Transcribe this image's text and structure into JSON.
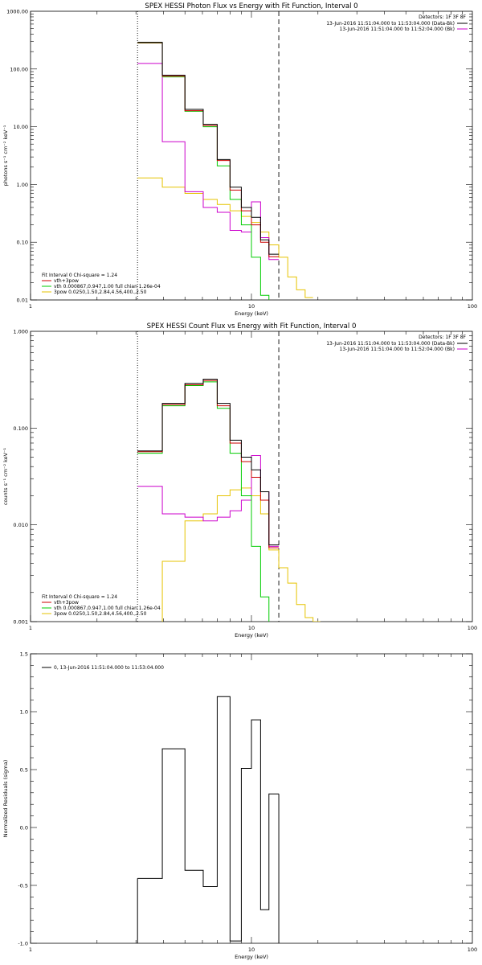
{
  "chart_data": [
    {
      "type": "line",
      "title": "SPEX HESSI Photon Flux vs Energy with Fit Function, Interval 0",
      "xlabel": "Energy (keV)",
      "ylabel": "photons s⁻¹ cm⁻² keV⁻¹",
      "xscale": "log",
      "yscale": "log",
      "xlim": [
        1,
        100
      ],
      "ylim": [
        0.01,
        1000
      ],
      "xticks": [
        {
          "v": 1,
          "label": "1"
        },
        {
          "v": 10,
          "label": "10"
        },
        {
          "v": 100,
          "label": "100"
        }
      ],
      "yticks": [
        {
          "v": 0.01,
          "label": "0.01"
        },
        {
          "v": 0.1,
          "label": "0.10"
        },
        {
          "v": 1,
          "label": "1.00"
        },
        {
          "v": 10,
          "label": "10.00"
        },
        {
          "v": 100,
          "label": "100.00"
        },
        {
          "v": 1000,
          "label": "1000.00"
        }
      ],
      "vlines": [
        {
          "x": 3.05,
          "style": "dotted"
        },
        {
          "x": 13.3,
          "style": "dashed"
        }
      ],
      "legend_right": {
        "header": "Detectors: 1F 3F 8F",
        "entries": [
          {
            "text": "13-Jun-2016 11:51:04.000 to 11:53:04.000 (Data-Bk)",
            "color": "#000000"
          },
          {
            "text": "13-Jun-2016 11:51:04.000 to 11:52:04.000 (Bk)",
            "color": "#cc00cc"
          }
        ]
      },
      "legend_left": {
        "header": "Fit Interval 0   Chi-square = 1.24",
        "entries": [
          {
            "text": "vth+3pow",
            "color": "#cc0000"
          },
          {
            "text": "vth 0.000867,0.947,1.00   full chian 1.26e-04",
            "color": "#00cc00"
          },
          {
            "text": "3pow 0.0250,1.50,2.84,4.56,400.,2.50",
            "color": "#e6c300"
          }
        ]
      },
      "edges": [
        3.05,
        3.95,
        5.0,
        6.05,
        7.0,
        8.0,
        9.0,
        10.0,
        11.0,
        12.0,
        13.3,
        14.6,
        16.0,
        17.5,
        19.0
      ],
      "series": [
        {
          "name": "data",
          "color": "#000000",
          "values": [
            290,
            78,
            20,
            11,
            2.7,
            0.9,
            0.4,
            0.27,
            0.11,
            0.062,
            null,
            null,
            null,
            null
          ]
        },
        {
          "name": "vth+3pow",
          "color": "#cc0000",
          "values": [
            285,
            75,
            19,
            10.5,
            2.6,
            0.8,
            0.35,
            0.2,
            0.1,
            0.056,
            null,
            null,
            null,
            null
          ]
        },
        {
          "name": "vth",
          "color": "#00cc00",
          "values": [
            282,
            73,
            18.5,
            10,
            2.1,
            0.55,
            0.2,
            0.055,
            0.012,
            0.004,
            null,
            null,
            null,
            null
          ]
        },
        {
          "name": "3pow",
          "color": "#e6c300",
          "values": [
            1.3,
            0.9,
            0.7,
            0.55,
            0.45,
            0.35,
            0.28,
            0.22,
            0.15,
            0.09,
            0.055,
            0.025,
            0.015,
            0.011
          ]
        },
        {
          "name": "background",
          "color": "#cc00cc",
          "values": [
            125,
            5.5,
            0.75,
            0.4,
            0.33,
            0.16,
            0.15,
            0.5,
            0.12,
            0.05,
            null,
            null,
            null,
            null
          ]
        }
      ]
    },
    {
      "type": "line",
      "title": "SPEX HESSI Count Flux vs Energy with Fit Function, Interval 0",
      "xlabel": "Energy (keV)",
      "ylabel": "counts s⁻¹ cm⁻² keV⁻¹",
      "xscale": "log",
      "yscale": "log",
      "xlim": [
        1,
        100
      ],
      "ylim": [
        0.001,
        1
      ],
      "xticks": [
        {
          "v": 1,
          "label": "1"
        },
        {
          "v": 10,
          "label": "10"
        },
        {
          "v": 100,
          "label": "100"
        }
      ],
      "yticks": [
        {
          "v": 0.001,
          "label": "0.001"
        },
        {
          "v": 0.01,
          "label": "0.010"
        },
        {
          "v": 0.1,
          "label": "0.100"
        },
        {
          "v": 1,
          "label": "1.000"
        }
      ],
      "vlines": [
        {
          "x": 3.05,
          "style": "dotted"
        },
        {
          "x": 13.3,
          "style": "dashed"
        }
      ],
      "legend_right": {
        "header": "Detectors: 1F 3F 8F",
        "entries": [
          {
            "text": "13-Jun-2016 11:51:04.000 to 11:53:04.000 (Data-Bk)",
            "color": "#000000"
          },
          {
            "text": "13-Jun-2016 11:51:04.000 to 11:52:04.000 (Bk)",
            "color": "#cc00cc"
          }
        ]
      },
      "legend_left": {
        "header": "Fit Interval 0   Chi-square = 1.24",
        "entries": [
          {
            "text": "vth+3pow",
            "color": "#cc0000"
          },
          {
            "text": "vth 0.000867,0.947,1.00   full chian 1.26e-04",
            "color": "#00cc00"
          },
          {
            "text": "3pow 0.0250,1.50,2.84,4.56,400.,2.50",
            "color": "#e6c300"
          }
        ]
      },
      "edges": [
        3.05,
        3.95,
        5.0,
        6.05,
        7.0,
        8.0,
        9.0,
        10.0,
        11.0,
        12.0,
        13.3,
        14.6,
        16.0,
        17.5,
        19.0,
        20.5
      ],
      "series": [
        {
          "name": "data",
          "color": "#000000",
          "values": [
            0.058,
            0.18,
            0.29,
            0.32,
            0.18,
            0.075,
            0.05,
            0.037,
            0.022,
            0.0062,
            null,
            null,
            null,
            null,
            null
          ]
        },
        {
          "name": "vth+3pow",
          "color": "#cc0000",
          "values": [
            0.057,
            0.175,
            0.28,
            0.31,
            0.17,
            0.07,
            0.045,
            0.031,
            0.018,
            0.0058,
            null,
            null,
            null,
            null,
            null
          ]
        },
        {
          "name": "vth",
          "color": "#00cc00",
          "values": [
            0.055,
            0.17,
            0.275,
            0.3,
            0.16,
            0.055,
            0.02,
            0.006,
            0.0018,
            0.0008,
            null,
            null,
            null,
            null,
            null
          ]
        },
        {
          "name": "3pow",
          "color": "#e6c300",
          "values": [
            0.0008,
            0.0042,
            0.011,
            0.013,
            0.02,
            0.023,
            0.024,
            0.02,
            0.013,
            0.0055,
            0.0036,
            0.0025,
            0.0015,
            0.0011,
            0.001
          ]
        },
        {
          "name": "background",
          "color": "#cc00cc",
          "values": [
            0.025,
            0.013,
            0.012,
            0.011,
            0.012,
            0.014,
            0.018,
            0.052,
            0.022,
            0.006,
            null,
            null,
            null,
            null,
            null
          ]
        }
      ]
    },
    {
      "type": "line",
      "title": "",
      "xlabel": "Energy (keV)",
      "ylabel": "Normalized Residuals (sigma)",
      "xscale": "log",
      "yscale": "linear",
      "xlim": [
        1,
        100
      ],
      "ylim": [
        -1,
        1.5
      ],
      "xticks": [
        {
          "v": 1,
          "label": "1"
        },
        {
          "v": 10,
          "label": "10"
        },
        {
          "v": 100,
          "label": "100"
        }
      ],
      "yticks": [
        {
          "v": -1,
          "label": "-1.0"
        },
        {
          "v": -0.5,
          "label": "-0.5"
        },
        {
          "v": 0,
          "label": "0.0"
        },
        {
          "v": 0.5,
          "label": "0.5"
        },
        {
          "v": 1,
          "label": "1.0"
        },
        {
          "v": 1.5,
          "label": "1.5"
        }
      ],
      "legend_left": {
        "entries": [
          {
            "text": "0, 13-Jun-2016 11:51:04.000 to 11:53:04.000",
            "color": "#000000"
          }
        ]
      },
      "edges": [
        3.05,
        3.95,
        5.0,
        6.05,
        7.0,
        8.0,
        9.0,
        10.0,
        11.0,
        12.0,
        13.3
      ],
      "series": [
        {
          "name": "residuals",
          "color": "#000000",
          "values": [
            -0.44,
            0.68,
            -0.37,
            -0.51,
            1.13,
            -0.98,
            0.51,
            0.93,
            -0.71,
            0.29
          ]
        }
      ]
    }
  ]
}
